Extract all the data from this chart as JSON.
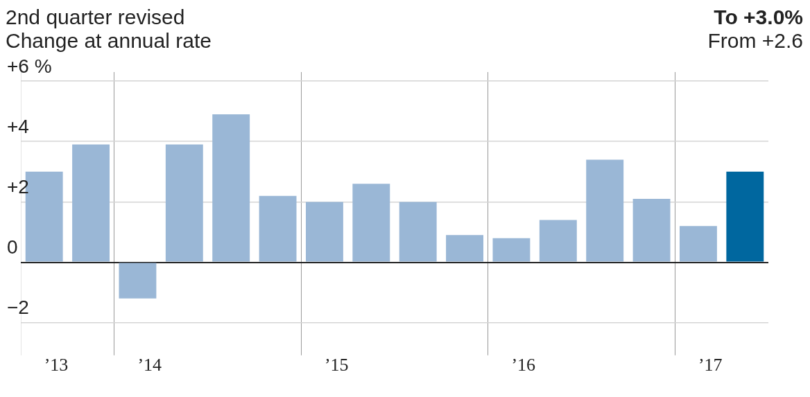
{
  "chart_data": {
    "type": "bar",
    "title": "2nd quarter revised",
    "subtitle": "Change at annual rate",
    "annotations": [
      "To +3.0%",
      "From +2.6"
    ],
    "categories": [
      "’13",
      null,
      "’14",
      null,
      null,
      null,
      "’15",
      null,
      null,
      null,
      "’16",
      null,
      null,
      null,
      "’17",
      null
    ],
    "series": [
      {
        "values": [
          3.0,
          3.9,
          -1.2,
          3.9,
          4.9,
          2.2,
          2.0,
          2.6,
          2.0,
          0.9,
          0.8,
          1.4,
          3.4,
          2.1,
          1.2,
          3.0
        ],
        "colors": [
          "#9ab7d6",
          "#9ab7d6",
          "#9ab7d6",
          "#9ab7d6",
          "#9ab7d6",
          "#9ab7d6",
          "#9ab7d6",
          "#9ab7d6",
          "#9ab7d6",
          "#9ab7d6",
          "#9ab7d6",
          "#9ab7d6",
          "#9ab7d6",
          "#9ab7d6",
          "#9ab7d6",
          "#00679f"
        ]
      }
    ],
    "ylim": [
      -2.3,
      6.3
    ],
    "yticks": [
      {
        "value": -2,
        "label": "−2"
      },
      0,
      {
        "value": 2,
        "label": "+2"
      },
      {
        "value": 4,
        "label": "+4"
      },
      {
        "value": 6,
        "label": "+6 %"
      }
    ],
    "grid": true,
    "legend": false
  }
}
